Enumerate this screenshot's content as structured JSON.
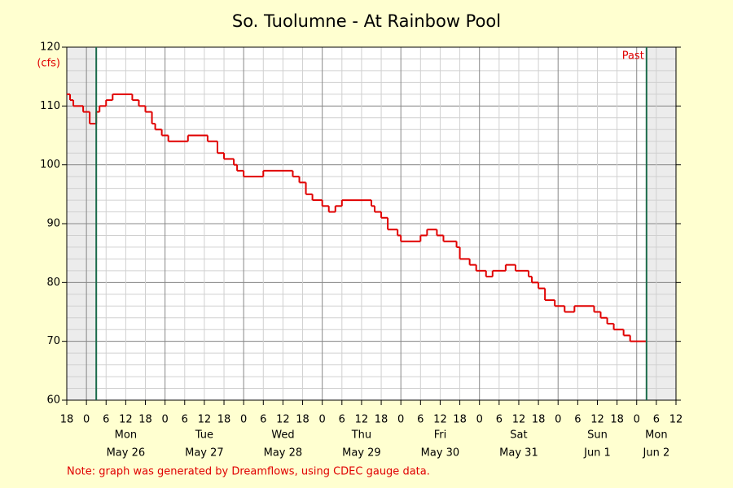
{
  "chart_data": {
    "type": "step",
    "title": "So. Tuolumne - At Rainbow Pool",
    "ylabel": "(cfs)",
    "note": "Note: graph was generated by Dreamflows, using CDEC gauge data.",
    "color": "#e00000",
    "x": [
      -6,
      -5,
      -4,
      -1,
      1,
      3,
      4,
      6,
      8,
      14,
      16,
      18,
      20,
      21,
      23,
      25,
      31,
      37,
      40,
      42,
      45,
      46,
      48,
      54,
      63,
      65,
      67,
      69,
      72,
      74,
      76,
      78,
      87,
      88,
      90,
      92,
      95,
      96,
      102,
      104,
      107,
      109,
      113,
      114,
      117,
      119,
      122,
      124,
      128,
      131,
      135,
      136,
      138,
      140,
      143,
      146,
      149,
      155,
      157,
      159,
      161,
      164,
      166,
      171
    ],
    "values": [
      112,
      111,
      110,
      109,
      107,
      109,
      110,
      111,
      112,
      111,
      110,
      109,
      107,
      106,
      105,
      104,
      105,
      104,
      102,
      101,
      100,
      99,
      98,
      99,
      98,
      97,
      95,
      94,
      93,
      92,
      93,
      94,
      93,
      92,
      91,
      89,
      88,
      87,
      88,
      89,
      88,
      87,
      86,
      84,
      83,
      82,
      81,
      82,
      83,
      82,
      81,
      80,
      79,
      77,
      76,
      75,
      76,
      75,
      74,
      73,
      72,
      71,
      70,
      70
    ],
    "xlim": [
      -6,
      180
    ],
    "ylim": [
      60,
      120
    ],
    "yticks": [
      60,
      70,
      80,
      90,
      100,
      110,
      120
    ],
    "y_minor_step": 2,
    "grid": true,
    "xticks": [
      {
        "value": -6,
        "label": "18"
      },
      0,
      6,
      12,
      {
        "value": 18,
        "label": "18"
      },
      {
        "value": 24,
        "label": "0"
      },
      {
        "value": 30,
        "label": "6"
      },
      {
        "value": 36,
        "label": "12"
      },
      {
        "value": 42,
        "label": "18"
      },
      {
        "value": 48,
        "label": "0"
      },
      {
        "value": 54,
        "label": "6"
      },
      {
        "value": 60,
        "label": "12"
      },
      {
        "value": 66,
        "label": "18"
      },
      {
        "value": 72,
        "label": "0"
      },
      {
        "value": 78,
        "label": "6"
      },
      {
        "value": 84,
        "label": "12"
      },
      {
        "value": 90,
        "label": "18"
      },
      {
        "value": 96,
        "label": "0"
      },
      {
        "value": 102,
        "label": "6"
      },
      {
        "value": 108,
        "label": "12"
      },
      {
        "value": 114,
        "label": "18"
      },
      {
        "value": 120,
        "label": "0"
      },
      {
        "value": 126,
        "label": "6"
      },
      {
        "value": 132,
        "label": "12"
      },
      {
        "value": 138,
        "label": "18"
      },
      {
        "value": 144,
        "label": "0"
      },
      {
        "value": 150,
        "label": "6"
      },
      {
        "value": 156,
        "label": "12"
      },
      {
        "value": 162,
        "label": "18"
      },
      {
        "value": 168,
        "label": "0"
      },
      {
        "value": 174,
        "label": "6"
      },
      {
        "value": 180,
        "label": "12"
      }
    ],
    "day_labels": [
      {
        "x": 12,
        "weekday": "Mon",
        "date": "May 26"
      },
      {
        "x": 36,
        "weekday": "Tue",
        "date": "May 27"
      },
      {
        "x": 60,
        "weekday": "Wed",
        "date": "May 28"
      },
      {
        "x": 84,
        "weekday": "Thu",
        "date": "May 29"
      },
      {
        "x": 108,
        "weekday": "Fri",
        "date": "May 30"
      },
      {
        "x": 132,
        "weekday": "Sat",
        "date": "May 31"
      },
      {
        "x": 156,
        "weekday": "Sun",
        "date": "Jun 1"
      },
      {
        "x": 174,
        "weekday": "Mon",
        "date": "Jun 2"
      }
    ],
    "window": [
      3,
      171
    ],
    "window_label": "Past"
  }
}
